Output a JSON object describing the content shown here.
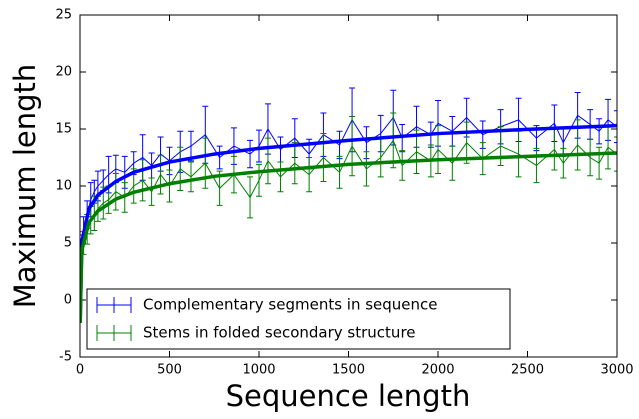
{
  "chart_data": {
    "type": "errorbar",
    "xlabel": "Sequence length",
    "ylabel": "Maximum length",
    "xlim": [
      0,
      3000
    ],
    "ylim": [
      -5,
      25
    ],
    "xticks": [
      0,
      500,
      1000,
      1500,
      2000,
      2500,
      3000
    ],
    "yticks": [
      -5,
      0,
      5,
      10,
      15,
      20,
      25
    ],
    "grid": false,
    "legend": "lower left",
    "series": [
      {
        "name": "Complementary segments in sequence",
        "color": "#0000ff",
        "x": [
          20,
          40,
          60,
          80,
          100,
          130,
          160,
          200,
          250,
          300,
          350,
          400,
          450,
          500,
          560,
          620,
          700,
          780,
          860,
          950,
          1000,
          1050,
          1120,
          1200,
          1280,
          1360,
          1450,
          1520,
          1600,
          1680,
          1750,
          1800,
          1880,
          1960,
          2000,
          2080,
          2160,
          2250,
          2350,
          2450,
          2550,
          2650,
          2700,
          2780,
          2850,
          2900,
          2950,
          3000
        ],
        "values": [
          6.5,
          7.5,
          8.8,
          9.5,
          10,
          10.5,
          11,
          11.5,
          11.2,
          12,
          12.5,
          11.8,
          12.8,
          12.2,
          13,
          13.5,
          14.5,
          12.5,
          13.5,
          12.8,
          13.5,
          15,
          13.2,
          14.2,
          12.8,
          14.5,
          13.6,
          15.8,
          13.8,
          14.6,
          16,
          14.2,
          15.2,
          14.5,
          15.5,
          14.8,
          16,
          14.5,
          15.2,
          15.8,
          14.2,
          15.5,
          13.8,
          16.2,
          15.4,
          14.8,
          15.8,
          15.2
        ],
        "errors": [
          0.8,
          1.2,
          1.5,
          1,
          1.3,
          0.9,
          1.6,
          1.2,
          1.4,
          1,
          2,
          1.1,
          1.5,
          1.2,
          1.8,
          1.3,
          2.5,
          1,
          1.6,
          1.2,
          1.4,
          2.2,
          1.1,
          1.7,
          1.3,
          1.9,
          1.2,
          2.8,
          1.4,
          1.6,
          2.4,
          1.2,
          1.8,
          1.1,
          2,
          1.3,
          1.7,
          1.2,
          1.5,
          1.9,
          1.1,
          1.6,
          1.2,
          2,
          1.3,
          1.1,
          1.8,
          1.4
        ]
      },
      {
        "name": "Stems in folded secondary structure",
        "color": "#008000",
        "x": [
          20,
          40,
          60,
          80,
          100,
          130,
          160,
          200,
          250,
          300,
          350,
          400,
          450,
          500,
          560,
          620,
          700,
          780,
          860,
          950,
          1000,
          1050,
          1120,
          1200,
          1280,
          1360,
          1450,
          1520,
          1600,
          1680,
          1750,
          1800,
          1880,
          1960,
          2000,
          2080,
          2160,
          2250,
          2350,
          2450,
          2550,
          2650,
          2700,
          2780,
          2850,
          2900,
          2950,
          3000
        ],
        "values": [
          5,
          6.2,
          7,
          7.6,
          8,
          8.5,
          8.8,
          9.5,
          9,
          10,
          10.5,
          9.5,
          11,
          10,
          11.5,
          10.8,
          12,
          9.8,
          11,
          9,
          10.5,
          12.2,
          10.8,
          12,
          11,
          12.5,
          11.2,
          13.5,
          11.5,
          12.5,
          14,
          11.8,
          13,
          12.2,
          13.2,
          12,
          13.8,
          12.4,
          13.5,
          12.8,
          11.8,
          13.2,
          12,
          13.6,
          12.5,
          12,
          13.4,
          12.8
        ],
        "errors": [
          1,
          1.3,
          1.2,
          1.5,
          1.1,
          1.4,
          1.2,
          1.6,
          1.3,
          1.5,
          1.8,
          1.2,
          1.7,
          1.4,
          1.9,
          1.3,
          2.2,
          1.5,
          1.6,
          1.8,
          1.4,
          2,
          1.3,
          1.8,
          1.5,
          2.1,
          1.4,
          2.6,
          1.5,
          1.7,
          2.4,
          1.3,
          1.9,
          1.4,
          2.1,
          1.5,
          1.8,
          1.4,
          1.7,
          2,
          1.5,
          1.8,
          1.3,
          2.2,
          1.6,
          1.4,
          1.9,
          1.5
        ]
      }
    ],
    "fits": [
      {
        "color": "#0000ff",
        "x": [
          1,
          10,
          50,
          100,
          200,
          300,
          500,
          750,
          1000,
          1500,
          2000,
          2500,
          3000
        ],
        "values": [
          -2,
          5.1,
          8,
          9.2,
          10.4,
          11.2,
          12.1,
          12.8,
          13.3,
          14,
          14.6,
          14.97,
          15.3
        ]
      },
      {
        "color": "#008000",
        "x": [
          1,
          10,
          50,
          100,
          200,
          300,
          500,
          750,
          1000,
          1500,
          2000,
          2500,
          3000
        ],
        "values": [
          -2,
          4.35,
          6.8,
          7.8,
          8.85,
          9.45,
          10.2,
          10.85,
          11.25,
          11.9,
          12.3,
          12.6,
          12.9
        ]
      }
    ]
  }
}
